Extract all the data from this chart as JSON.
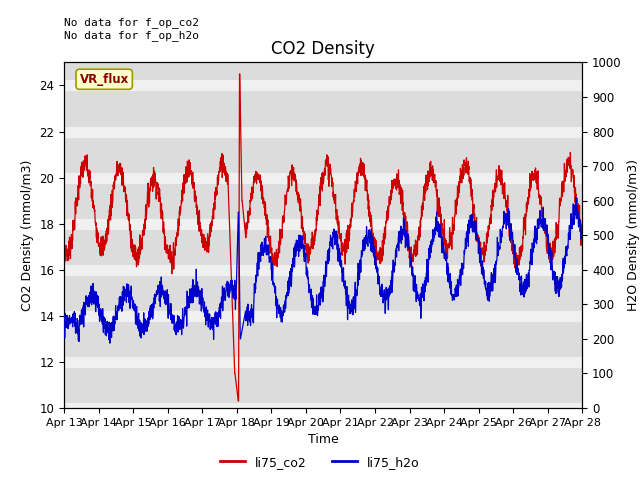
{
  "title": "CO2 Density",
  "xlabel": "Time",
  "ylabel_left": "CO2 Density (mmol/m3)",
  "ylabel_right": "H2O Density (mmol/m3)",
  "annotation_line1": "No data for f_op_co2",
  "annotation_line2": "No data for f_op_h2o",
  "legend_label1": "li75_co2",
  "legend_label2": "li75_h2o",
  "vr_flux_label": "VR_flux",
  "ylim_left": [
    10,
    25
  ],
  "ylim_right": [
    0,
    1000
  ],
  "yticks_left": [
    10,
    12,
    14,
    16,
    18,
    20,
    22,
    24
  ],
  "color_co2": "#cc0000",
  "color_h2o": "#0000cc",
  "background_color": "#dcdcdc",
  "grid_color": "#f0f0f0",
  "title_fontsize": 12,
  "axis_label_fontsize": 9,
  "tick_fontsize": 8.5
}
